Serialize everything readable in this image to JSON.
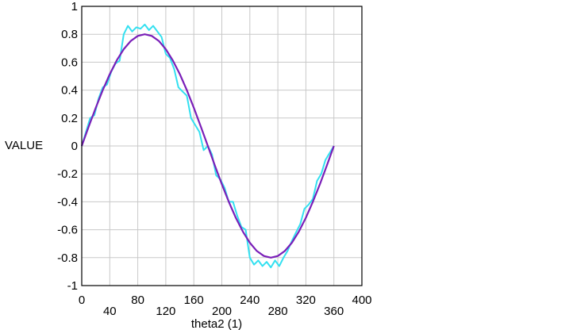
{
  "chart_data": {
    "type": "line",
    "xlabel": "theta2 (1)",
    "ylabel": "VALUE",
    "xlim": [
      0,
      400
    ],
    "ylim": [
      -1,
      1
    ],
    "xticks": [
      0,
      40,
      80,
      120,
      160,
      200,
      240,
      280,
      320,
      360,
      400
    ],
    "yticks": [
      1,
      0.8,
      0.6,
      0.4,
      0.2,
      0,
      -0.2,
      -0.4,
      -0.6,
      -0.8,
      -1
    ],
    "xtick_labels": [
      "0",
      "40",
      "80",
      "120",
      "160",
      "200",
      "240",
      "280",
      "320",
      "360",
      "400"
    ],
    "ytick_labels": [
      "1",
      "0.8",
      "0.6",
      "0.4",
      "0.2",
      "0",
      "-0.2",
      "-0.4",
      "-0.6",
      "-0.8",
      "-1"
    ],
    "grid": true,
    "legend": "none",
    "series": [
      {
        "color": "#7a1fb8",
        "x": [
          0,
          10,
          20,
          30,
          40,
          50,
          60,
          70,
          80,
          90,
          100,
          110,
          120,
          130,
          140,
          150,
          160,
          170,
          180,
          190,
          200,
          210,
          220,
          230,
          240,
          250,
          260,
          270,
          280,
          290,
          300,
          310,
          320,
          330,
          340,
          350,
          360
        ],
        "y": [
          0,
          0.139,
          0.274,
          0.4,
          0.514,
          0.613,
          0.693,
          0.752,
          0.788,
          0.8,
          0.788,
          0.752,
          0.693,
          0.613,
          0.514,
          0.4,
          0.274,
          0.139,
          0,
          -0.139,
          -0.274,
          -0.4,
          -0.514,
          -0.613,
          -0.693,
          -0.752,
          -0.788,
          -0.8,
          -0.788,
          -0.752,
          -0.693,
          -0.613,
          -0.514,
          -0.4,
          -0.274,
          -0.139,
          0
        ]
      },
      {
        "color": "#33e0f0",
        "x": [
          0,
          6,
          12,
          18,
          24,
          30,
          36,
          42,
          48,
          54,
          60,
          66,
          72,
          78,
          84,
          90,
          96,
          102,
          108,
          114,
          120,
          126,
          132,
          138,
          144,
          150,
          156,
          162,
          168,
          174,
          180,
          186,
          192,
          198,
          204,
          210,
          216,
          222,
          228,
          234,
          240,
          246,
          252,
          258,
          264,
          270,
          276,
          282,
          288,
          294,
          300,
          306,
          312,
          318,
          324,
          330,
          336,
          342,
          348,
          354,
          360
        ],
        "y": [
          0,
          0.1,
          0.2,
          0.22,
          0.34,
          0.42,
          0.44,
          0.53,
          0.59,
          0.61,
          0.8,
          0.86,
          0.82,
          0.85,
          0.84,
          0.87,
          0.83,
          0.86,
          0.82,
          0.78,
          0.66,
          0.63,
          0.55,
          0.42,
          0.39,
          0.36,
          0.2,
          0.15,
          0.1,
          -0.03,
          0,
          -0.06,
          -0.21,
          -0.24,
          -0.3,
          -0.4,
          -0.4,
          -0.5,
          -0.58,
          -0.6,
          -0.8,
          -0.85,
          -0.82,
          -0.86,
          -0.83,
          -0.87,
          -0.82,
          -0.86,
          -0.8,
          -0.75,
          -0.68,
          -0.62,
          -0.56,
          -0.45,
          -0.42,
          -0.38,
          -0.25,
          -0.2,
          -0.1,
          -0.05,
          0
        ]
      }
    ]
  }
}
